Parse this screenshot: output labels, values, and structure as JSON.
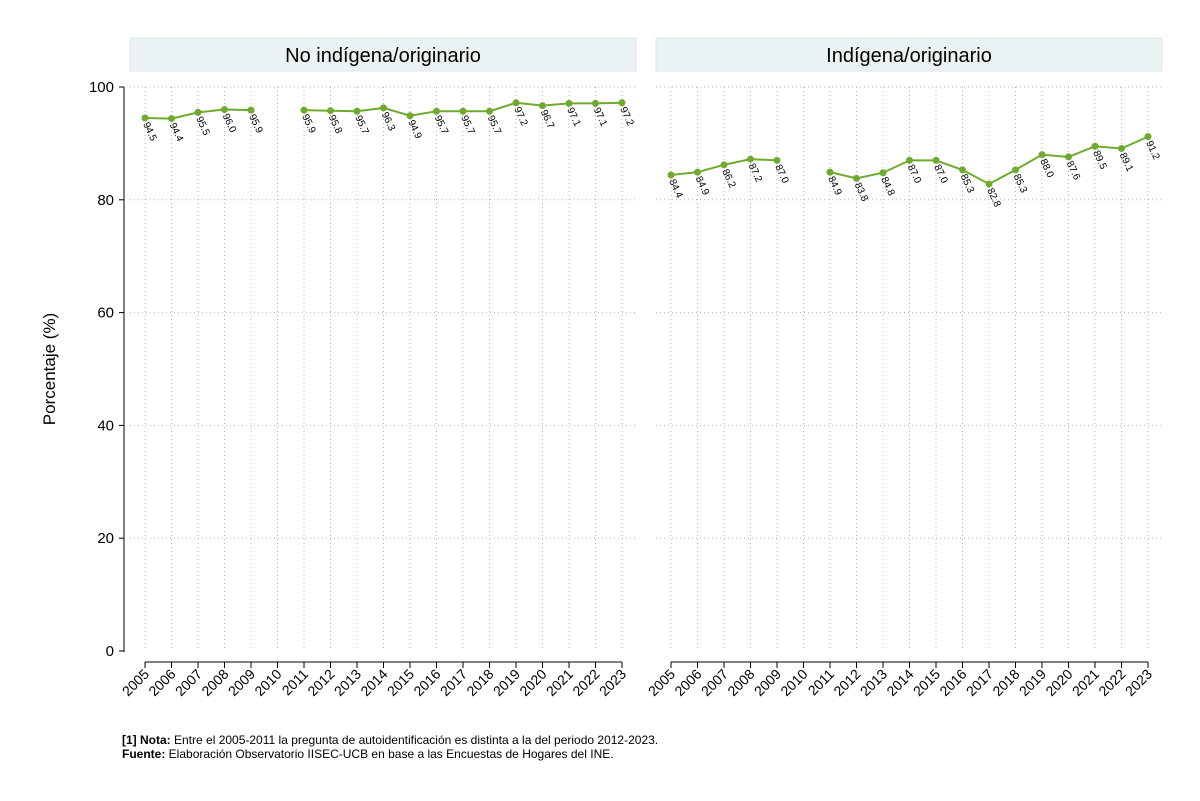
{
  "chart_data": {
    "type": "line",
    "ylabel": "Porcentaje (%)",
    "ylim": [
      0,
      100
    ],
    "yticks": [
      0,
      20,
      40,
      60,
      80,
      100
    ],
    "grid": true,
    "line_color": "#6eaa2e",
    "x": [
      "2005",
      "2006",
      "2007",
      "2008",
      "2009",
      "2010",
      "2011",
      "2012",
      "2013",
      "2014",
      "2015",
      "2016",
      "2017",
      "2018",
      "2019",
      "2020",
      "2021",
      "2022",
      "2023"
    ],
    "panels": [
      {
        "title": "No indígena/originario",
        "series": [
          {
            "values": [
              94.5,
              94.4,
              95.5,
              96.0,
              95.9,
              null,
              95.9,
              95.8,
              95.7,
              96.3,
              94.9,
              95.7,
              95.7,
              95.7,
              97.2,
              96.7,
              97.1,
              97.1,
              97.2
            ],
            "labels": [
              "94.5",
              "94.4",
              "95.5",
              "96.0",
              "95.9",
              "",
              "95.9",
              "95.8",
              "95.7",
              "96.3",
              "94.9",
              "95.7",
              "95.7",
              "95.7",
              "97.2",
              "96.7",
              "97.1",
              "97.1",
              "97.2"
            ]
          }
        ]
      },
      {
        "title": "Indígena/originario",
        "series": [
          {
            "values": [
              84.4,
              84.9,
              86.2,
              87.2,
              87.0,
              null,
              84.9,
              83.8,
              84.8,
              87.0,
              87.0,
              85.3,
              82.8,
              85.3,
              88.0,
              87.6,
              89.5,
              89.1,
              91.2
            ],
            "labels": [
              "84.4",
              "84.9",
              "86.2",
              "87.2",
              "87.0",
              "",
              "84.9",
              "83.8",
              "84.8",
              "87.0",
              "87.0",
              "85.3",
              "82.8",
              "85.3",
              "88.0",
              "87.6",
              "89.5",
              "89.1",
              "91.2"
            ]
          }
        ]
      }
    ]
  },
  "footnote": {
    "nota_label": "[1] Nota:",
    "nota_text": " Entre el 2005-2011 la pregunta de autoidentificación es distinta a la del periodo 2012-2023.",
    "fuente_label": "Fuente:",
    "fuente_text": " Elaboración Observatorio IISEC-UCB en base a las Encuestas de Hogares del INE."
  }
}
